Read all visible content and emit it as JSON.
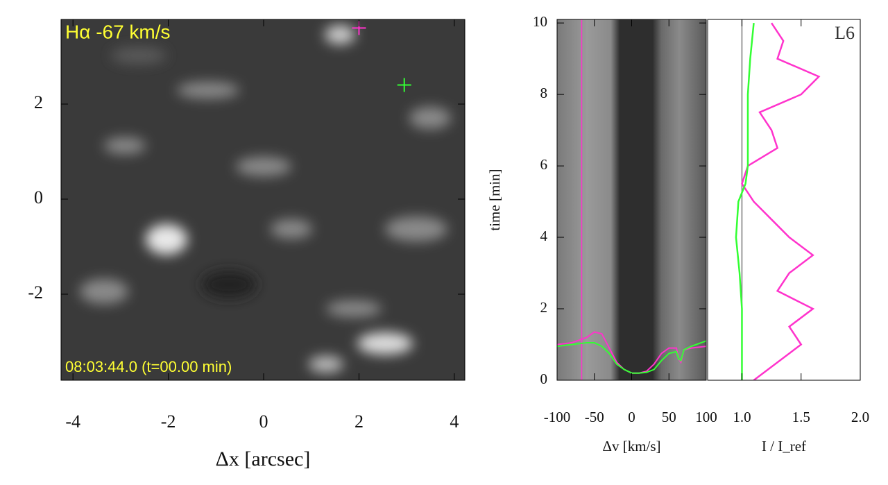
{
  "chart_data": [
    {
      "type": "image",
      "annotations": [
        "Hα -67 km/s",
        "08:03:44.0 (t=00.00 min)"
      ],
      "xlabel": "Δx [arcsec]",
      "xlim": [
        -4.25,
        4.22
      ],
      "xticks": [
        -4,
        -2,
        0,
        2,
        4
      ],
      "ylim": [
        -3.81,
        3.78
      ],
      "yticks": [
        -2,
        0,
        2
      ],
      "series": [
        {
          "color": "#ff33cc",
          "x": [
            2.0
          ],
          "values": [
            3.6
          ]
        },
        {
          "color": "#33ff33",
          "x": [
            2.95
          ],
          "values": [
            2.4
          ]
        }
      ]
    },
    {
      "type": "timeslice",
      "xlabel": "Δv [km/s]",
      "ylabel": "time [min]",
      "xlim": [
        -100,
        100
      ],
      "xticks": [
        -100,
        -50,
        0,
        50,
        100
      ],
      "ylim": [
        0,
        10.1
      ],
      "yticks": [
        0,
        2,
        4,
        6,
        8,
        10
      ],
      "vlines": [
        {
          "value": -67,
          "color": "#ff33cc"
        }
      ],
      "series": [
        {
          "color": "#ff33cc",
          "x": [
            -100,
            -80,
            -60,
            -50,
            -40,
            -30,
            -20,
            -10,
            0,
            10,
            20,
            30,
            40,
            50,
            60,
            63,
            66,
            70,
            80,
            100
          ],
          "values": [
            1.0,
            1.05,
            1.2,
            1.35,
            1.3,
            0.9,
            0.5,
            0.3,
            0.2,
            0.2,
            0.25,
            0.45,
            0.75,
            0.9,
            0.9,
            0.6,
            0.5,
            0.85,
            0.9,
            0.95
          ]
        },
        {
          "color": "#33ff33",
          "x": [
            -100,
            -80,
            -60,
            -50,
            -40,
            -30,
            -20,
            -10,
            0,
            10,
            20,
            30,
            40,
            50,
            60,
            63,
            66,
            70,
            80,
            100
          ],
          "values": [
            0.95,
            1.0,
            1.05,
            1.05,
            0.95,
            0.75,
            0.45,
            0.3,
            0.2,
            0.2,
            0.22,
            0.3,
            0.55,
            0.75,
            0.8,
            0.6,
            0.55,
            0.85,
            0.95,
            1.1
          ]
        }
      ]
    },
    {
      "type": "line",
      "label": "L6",
      "xlabel": "I / I_ref",
      "xlim": [
        0.71,
        2.0
      ],
      "xticks": [
        {
          "value": 1.0,
          "label": "1.0"
        },
        1.5,
        {
          "value": 2.0,
          "label": "2.0"
        }
      ],
      "ylim": [
        0,
        10.1
      ],
      "vlines": [
        {
          "value": 1.0,
          "color": "#777777"
        }
      ],
      "series": [
        {
          "color": "#ff33cc",
          "y": [
            0,
            0.5,
            1,
            1.5,
            2,
            2.5,
            3,
            3.5,
            4,
            4.5,
            5,
            5.5,
            6,
            6.5,
            7,
            7.5,
            8,
            8.5,
            9,
            9.5,
            10
          ],
          "values": [
            1.1,
            1.3,
            1.5,
            1.4,
            1.6,
            1.3,
            1.4,
            1.6,
            1.4,
            1.25,
            1.1,
            1.0,
            1.05,
            1.3,
            1.25,
            1.15,
            1.5,
            1.65,
            1.3,
            1.35,
            1.25
          ]
        },
        {
          "color": "#33ff33",
          "y": [
            0,
            1,
            2,
            3,
            4,
            4.5,
            5,
            5.5,
            6,
            7,
            8,
            9,
            10
          ],
          "values": [
            1.0,
            1.0,
            1.0,
            0.98,
            0.95,
            0.96,
            0.97,
            1.03,
            1.05,
            1.05,
            1.05,
            1.07,
            1.1
          ]
        }
      ]
    }
  ]
}
